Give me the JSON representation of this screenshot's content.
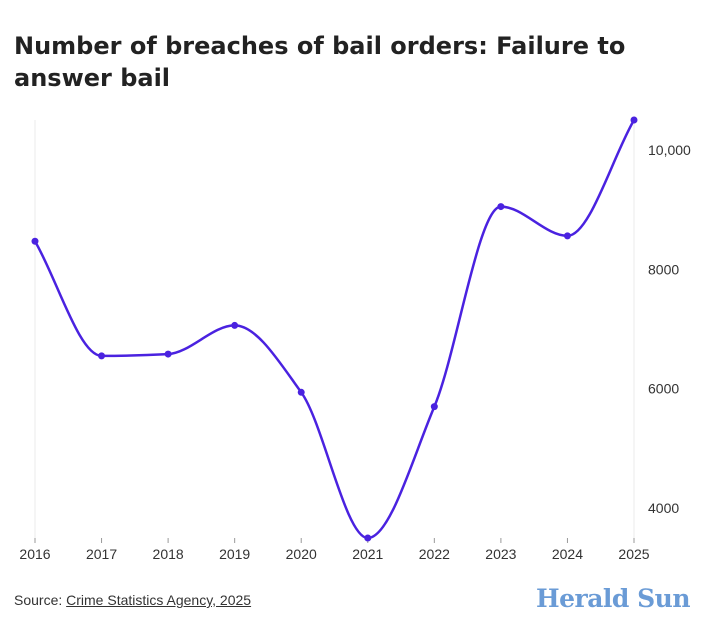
{
  "title": "Number of breaches of bail orders: Failure to answer bail",
  "source": {
    "prefix": "Source: ",
    "link_text": "Crime Statistics Agency, 2025"
  },
  "brand": {
    "name": "Herald Sun",
    "color": "#6a9bd6"
  },
  "colors": {
    "line": "#4a22e0",
    "grid": "#ebebeb",
    "axis_text": "#333333"
  },
  "chart_data": {
    "type": "line",
    "title": "Number of breaches of bail orders: Failure to answer bail",
    "xlabel": "",
    "ylabel": "",
    "x": [
      "2016",
      "2017",
      "2018",
      "2019",
      "2020",
      "2021",
      "2022",
      "2023",
      "2024",
      "2025"
    ],
    "series": [
      {
        "values": [
          8470,
          6550,
          6580,
          7060,
          5940,
          3500,
          5700,
          9050,
          8560,
          10500
        ]
      }
    ],
    "ylim": [
      3500,
      10500
    ],
    "y_ticks": [
      4000,
      6000,
      8000,
      10000
    ],
    "y_tick_labels": [
      "4000",
      "6000",
      "8000",
      "10,000"
    ],
    "y_axis_position": "right",
    "grid": false,
    "legend": "none"
  }
}
